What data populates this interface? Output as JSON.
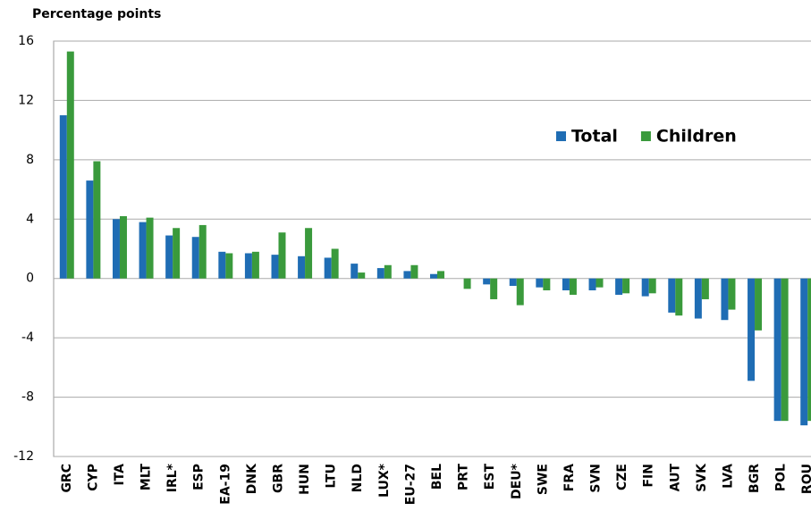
{
  "chart_data": {
    "type": "bar",
    "y_label": "Percentage points",
    "categories": [
      "GRC",
      "CYP",
      "ITA",
      "MLT",
      "IRL*",
      "ESP",
      "EA-19",
      "DNK",
      "GBR",
      "HUN",
      "LTU",
      "NLD",
      "LUX*",
      "EU-27",
      "BEL",
      "PRT",
      "EST",
      "DEU*",
      "SWE",
      "FRA",
      "SVN",
      "CZE",
      "FIN",
      "AUT",
      "SVK",
      "LVA",
      "BGR",
      "POL",
      "ROU"
    ],
    "series": [
      {
        "name": "Total",
        "color": "#1f6db4",
        "values": [
          11.0,
          6.6,
          4.0,
          3.8,
          2.9,
          2.8,
          1.8,
          1.7,
          1.6,
          1.5,
          1.4,
          1.0,
          0.7,
          0.5,
          0.3,
          0.0,
          -0.4,
          -0.5,
          -0.6,
          -0.8,
          -0.8,
          -1.1,
          -1.2,
          -2.3,
          -2.7,
          -2.8,
          -6.9,
          -9.6,
          -9.9
        ]
      },
      {
        "name": "Children",
        "color": "#3a9a3c",
        "values": [
          15.3,
          7.9,
          4.2,
          4.1,
          3.4,
          3.6,
          1.7,
          1.8,
          3.1,
          3.4,
          2.0,
          0.4,
          0.9,
          0.9,
          0.5,
          -0.7,
          -1.4,
          -1.8,
          -0.8,
          -1.1,
          -0.6,
          -1.0,
          -1.0,
          -2.5,
          -1.4,
          -2.1,
          -3.5,
          -9.6,
          -9.6
        ]
      }
    ],
    "ylim": [
      -12,
      16
    ],
    "yticks": [
      -12,
      -8,
      -4,
      0,
      4,
      8,
      12,
      16
    ],
    "grid": true
  }
}
